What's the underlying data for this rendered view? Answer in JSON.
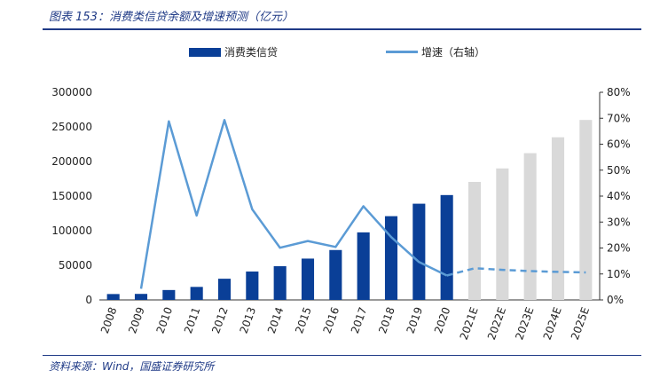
{
  "header": {
    "title": "图表 153：消费类信贷余额及增速预测（亿元）"
  },
  "footer": {
    "source": "资料来源：Wind，国盛证券研究所"
  },
  "chart_data": {
    "type": "bar",
    "categories": [
      "2008",
      "2009",
      "2010",
      "2011",
      "2012",
      "2013",
      "2014",
      "2015",
      "2016",
      "2017",
      "2018",
      "2019",
      "2020",
      "2021E",
      "2022E",
      "2023E",
      "2024E",
      "2025E"
    ],
    "series": [
      {
        "name": "消费类信贷",
        "axis": "left",
        "type": "bar",
        "values": [
          8500,
          8700,
          14300,
          18800,
          30600,
          41000,
          48700,
          59700,
          72100,
          97600,
          121000,
          139000,
          151500,
          170500,
          190000,
          212000,
          235000,
          260000
        ],
        "forecast_from_index": 13
      },
      {
        "name": "增速（右轴）",
        "axis": "right",
        "type": "line",
        "values": [
          null,
          4.3,
          68.8,
          32.5,
          69.3,
          34.9,
          20.1,
          22.7,
          20.4,
          36.1,
          24.2,
          14.6,
          9.4,
          12.2,
          11.6,
          11.1,
          10.8,
          10.6
        ],
        "forecast_from_index": 13
      }
    ],
    "ylim_left": [
      0,
      300000
    ],
    "yticks_left": [
      "0",
      "50000",
      "100000",
      "150000",
      "200000",
      "250000",
      "300000"
    ],
    "ylim_right": [
      0,
      80
    ],
    "yticks_right": [
      "0%",
      "10%",
      "20%",
      "30%",
      "40%",
      "50%",
      "60%",
      "70%",
      "80%"
    ],
    "legend_position": "top",
    "colors": {
      "bar": "#0a3f97",
      "bar_forecast": "#d9d9d9",
      "line": "#5b9bd5",
      "title": "#1f3a86"
    }
  }
}
